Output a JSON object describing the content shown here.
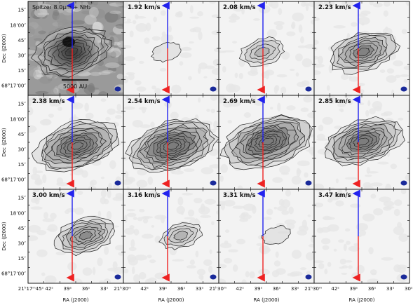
{
  "chart_data": {
    "type": "channel-map",
    "first_panel_label": "Spitzer 8.0μm + NH₃",
    "scale_bar_label": "5000 AU",
    "ylabel": "Dec (J2000)",
    "xlabel": "RA (J2000)",
    "y_ticks": [
      "15″",
      "18’00″",
      "45″",
      "30″",
      "15″",
      "68°17’00″"
    ],
    "x_ticks": [
      "21ʰ17ᵐ45ˢ",
      "42ˢ",
      "39ˢ",
      "36ˢ",
      "33ˢ",
      "21ʰ30ᵐ"
    ],
    "x_ticks_inner": [
      "45ˢ",
      "42ˢ",
      "39ˢ",
      "36ˢ",
      "33ˢ",
      "21ʰ30ᵐ"
    ],
    "x_ticks_last": [
      "45ˢ",
      "42ˢ",
      "39ˢ",
      "36ˢ",
      "33ˢ",
      "30ˢ"
    ],
    "velocities": [
      "1.92 km/s",
      "2.08 km/s",
      "2.23 km/s",
      "2.38 km/s",
      "2.54 km/s",
      "2.69 km/s",
      "2.85 km/s",
      "3.00 km/s",
      "3.16 km/s",
      "3.31 km/s",
      "3.47 km/s"
    ],
    "emission_strength": [
      0,
      0.12,
      0.35,
      0.7,
      0.95,
      1,
      1,
      0.85,
      0.6,
      0.3,
      0.1,
      0
    ],
    "outflow": {
      "blue_lobe": "north",
      "red_lobe": "south",
      "blue_color": "#2222ee",
      "red_color": "#ee2222"
    }
  },
  "colors": {
    "contour": "#222222",
    "noise": "#e6e6e6",
    "beam": "#1a2a9a"
  }
}
